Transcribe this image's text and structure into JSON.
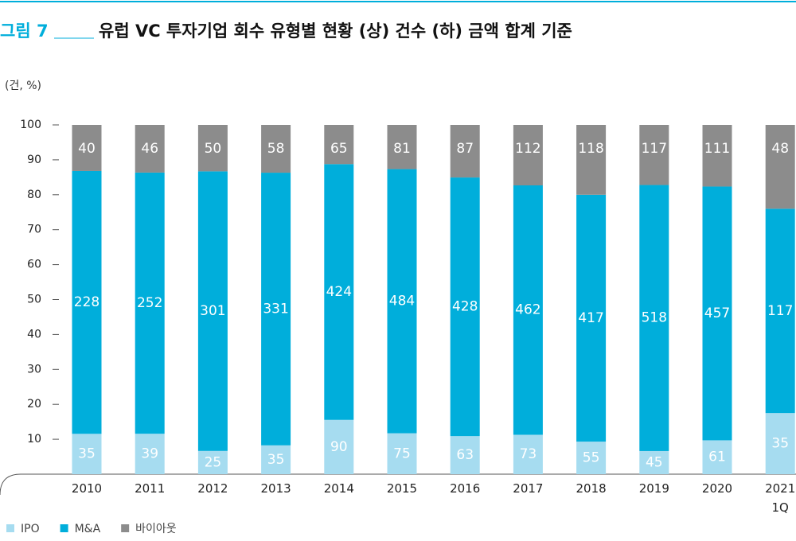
{
  "chart_data": {
    "type": "stacked_percent_bar",
    "figure_label": "그림 7",
    "title": "유럽 VC 투자기업 회수 유형별 현황 (상) 건수 (하) 금액 합계 기준",
    "unit_label": "(건, %)",
    "categories": [
      "2010",
      "2011",
      "2012",
      "2013",
      "2014",
      "2015",
      "2016",
      "2017",
      "2018",
      "2019",
      "2020",
      "2021\n1Q"
    ],
    "series": [
      {
        "name": "IPO",
        "color": "#a6dcf0",
        "values": [
          35,
          39,
          25,
          35,
          90,
          75,
          63,
          73,
          55,
          45,
          61,
          35
        ]
      },
      {
        "name": "M&A",
        "color": "#00aedb",
        "values": [
          228,
          252,
          301,
          331,
          424,
          484,
          428,
          462,
          417,
          518,
          457,
          117
        ]
      },
      {
        "name": "바이아웃",
        "color": "#8c8c8c",
        "values": [
          40,
          46,
          50,
          58,
          65,
          81,
          87,
          112,
          118,
          117,
          111,
          48
        ]
      }
    ],
    "ylim": [
      0,
      100
    ],
    "yticks": [
      10,
      20,
      30,
      40,
      50,
      60,
      70,
      80,
      90,
      100
    ],
    "legend": "bottom-left"
  }
}
